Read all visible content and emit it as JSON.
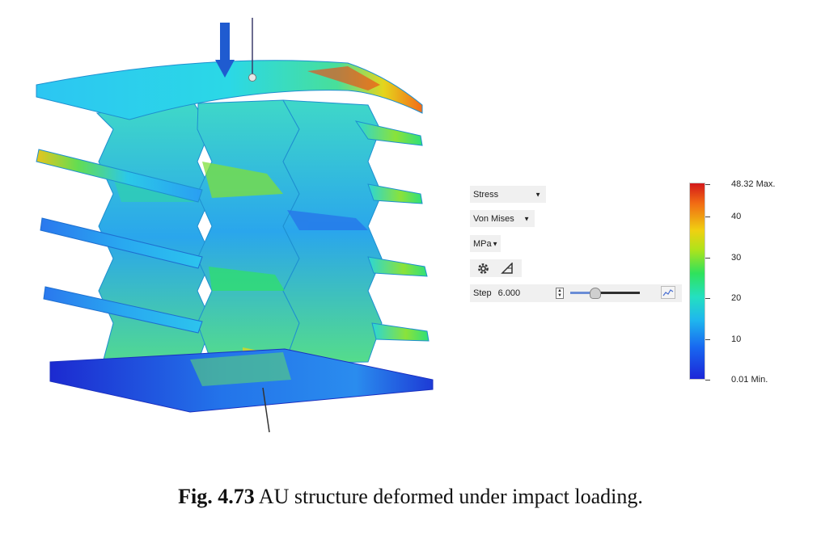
{
  "controls": {
    "result_type": "Stress",
    "criterion": "Von Mises",
    "unit": "MPa",
    "step_label": "Step",
    "step_value": "6.000",
    "step_slider_fraction": 0.35
  },
  "legend": {
    "max_label": "48.32 Max.",
    "min_label": "0.01 Min.",
    "ticks": [
      "40",
      "30",
      "20",
      "10"
    ]
  },
  "caption": {
    "number": "Fig. 4.73",
    "text": "AU structure deformed under impact loading."
  },
  "colors": {
    "accent_slider": "#6a8dd6",
    "stress_max": "#d3181a",
    "stress_min": "#1c26d8"
  },
  "icons": [
    "settings-gear-icon",
    "triangle-probe-icon",
    "graph-icon",
    "load-arrow-icon"
  ]
}
